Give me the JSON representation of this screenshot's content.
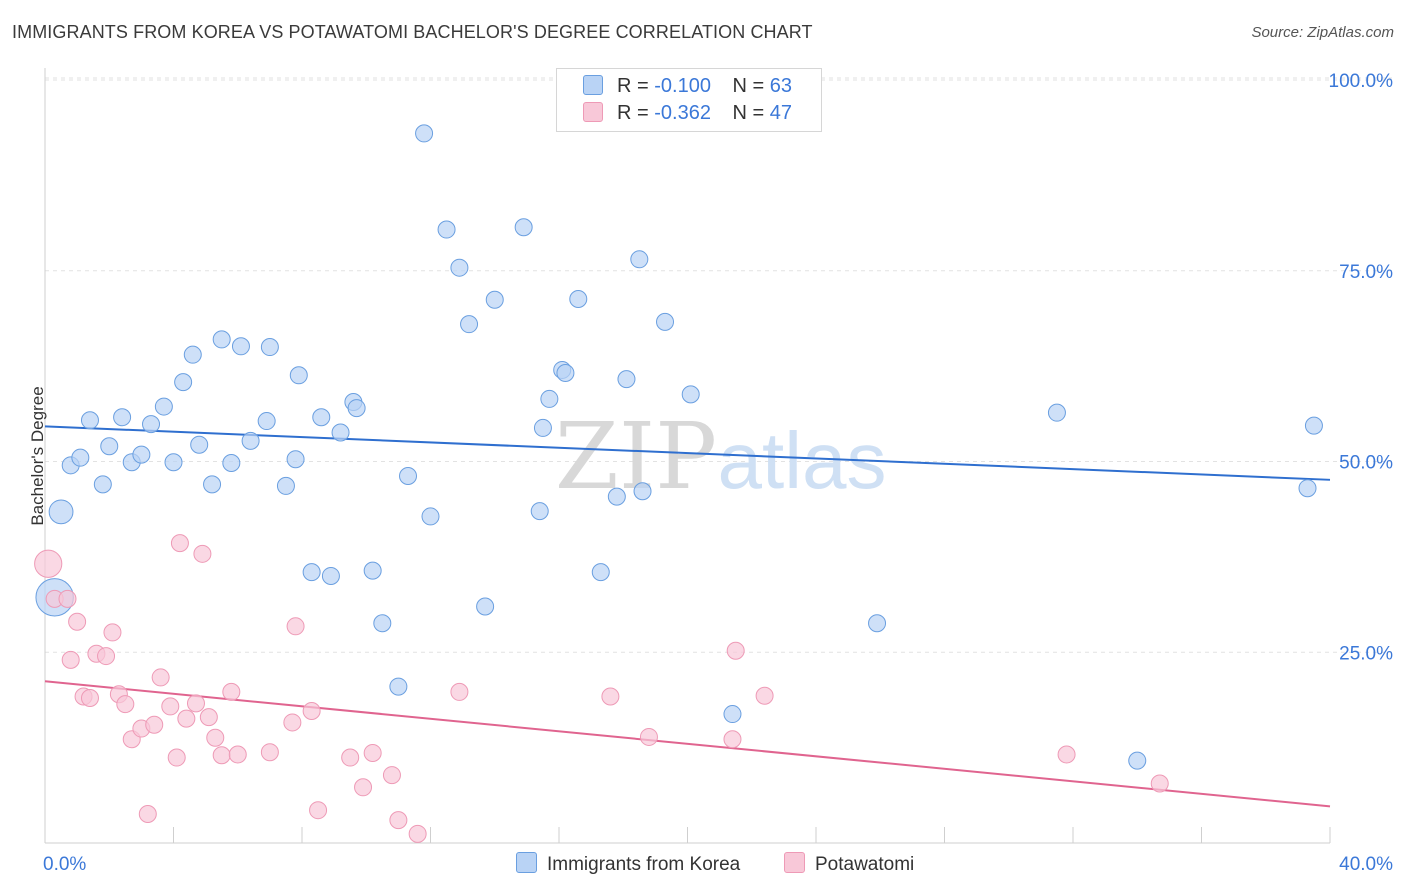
{
  "header": {
    "title": "IMMIGRANTS FROM KOREA VS POTAWATOMI BACHELOR'S DEGREE CORRELATION CHART",
    "source": "Source: ZipAtlas.com"
  },
  "watermark": {
    "zip": "ZIP",
    "atlas": "atlas"
  },
  "legend": {
    "series": [
      {
        "r_label": "R =",
        "r_value": "-0.100",
        "n_label": "N =",
        "n_value": "63",
        "color": "#a8c8f0"
      },
      {
        "r_label": "R =",
        "r_value": "-0.362",
        "n_label": "N =",
        "n_value": "47",
        "color": "#f5b8cc"
      }
    ]
  },
  "chart_data": {
    "type": "scatter",
    "title": "IMMIGRANTS FROM KOREA VS POTAWATOMI BACHELOR'S DEGREE CORRELATION CHART",
    "ylabel": "Bachelor's Degree",
    "xlabel": "",
    "xlim": [
      0,
      40
    ],
    "ylim": [
      0,
      105
    ],
    "x_tick_labels": [
      "0.0%",
      "40.0%"
    ],
    "y_ticks": [
      25,
      50,
      75,
      100
    ],
    "y_tick_labels": [
      "25.0%",
      "50.0%",
      "75.0%",
      "100.0%"
    ],
    "grid": true,
    "legend_position": "top-center",
    "series": [
      {
        "name": "Immigrants from Korea",
        "color": "#6a9fe0",
        "fill": "#b9d3f5",
        "trend": {
          "color": "#2f6fcf",
          "y_at_x0": 54.6,
          "y_at_x40": 47.6
        },
        "points": [
          [
            0.3,
            32.2,
            2.2
          ],
          [
            0.5,
            43.4,
            1.4
          ],
          [
            0.8,
            49.5,
            1
          ],
          [
            1.1,
            50.5,
            1
          ],
          [
            1.4,
            55.4,
            1
          ],
          [
            1.8,
            47.0,
            1
          ],
          [
            2.0,
            52.0,
            1
          ],
          [
            2.4,
            55.8,
            1
          ],
          [
            2.7,
            49.9,
            1
          ],
          [
            3.0,
            50.9,
            1
          ],
          [
            3.3,
            54.9,
            1
          ],
          [
            3.7,
            57.2,
            1
          ],
          [
            4.0,
            49.9,
            1
          ],
          [
            4.3,
            60.4,
            1
          ],
          [
            4.6,
            64.0,
            1
          ],
          [
            4.8,
            52.2,
            1
          ],
          [
            5.2,
            47.0,
            1
          ],
          [
            5.5,
            66.0,
            1
          ],
          [
            5.8,
            49.8,
            1
          ],
          [
            6.1,
            65.1,
            1
          ],
          [
            6.4,
            52.7,
            1
          ],
          [
            6.9,
            55.3,
            1
          ],
          [
            7.0,
            65.0,
            1
          ],
          [
            7.5,
            46.8,
            1
          ],
          [
            7.8,
            50.3,
            1
          ],
          [
            7.9,
            61.3,
            1
          ],
          [
            8.3,
            35.5,
            1
          ],
          [
            8.6,
            55.8,
            1
          ],
          [
            8.9,
            35.0,
            1
          ],
          [
            9.2,
            53.8,
            1
          ],
          [
            9.6,
            57.8,
            1
          ],
          [
            9.7,
            57.0,
            1
          ],
          [
            10.2,
            35.7,
            1
          ],
          [
            10.5,
            28.8,
            1
          ],
          [
            11.0,
            20.5,
            1
          ],
          [
            11.3,
            48.1,
            1
          ],
          [
            11.8,
            93.0,
            1
          ],
          [
            12.0,
            42.8,
            1
          ],
          [
            12.5,
            80.4,
            1
          ],
          [
            12.9,
            75.4,
            1
          ],
          [
            13.2,
            68.0,
            1
          ],
          [
            13.7,
            31.0,
            1
          ],
          [
            14.0,
            71.2,
            1
          ],
          [
            14.9,
            80.7,
            1
          ],
          [
            15.4,
            43.5,
            1
          ],
          [
            15.5,
            54.4,
            1
          ],
          [
            15.7,
            58.2,
            1
          ],
          [
            16.1,
            62.0,
            1
          ],
          [
            16.2,
            61.6,
            1
          ],
          [
            16.6,
            71.3,
            1
          ],
          [
            17.3,
            35.5,
            1
          ],
          [
            17.8,
            45.4,
            1
          ],
          [
            18.1,
            60.8,
            1
          ],
          [
            18.5,
            76.5,
            1
          ],
          [
            18.6,
            46.1,
            1
          ],
          [
            19.3,
            68.3,
            1
          ],
          [
            20.1,
            58.8,
            1
          ],
          [
            21.4,
            16.9,
            1
          ],
          [
            25.9,
            28.8,
            1
          ],
          [
            31.5,
            56.4,
            1
          ],
          [
            34.0,
            10.8,
            1
          ],
          [
            39.3,
            46.5,
            1
          ],
          [
            39.5,
            54.7,
            1
          ]
        ]
      },
      {
        "name": "Potawatomi",
        "color": "#ee9ab6",
        "fill": "#f8c8d8",
        "trend": {
          "color": "#e0648f",
          "y_at_x0": 21.2,
          "y_at_x40": 4.8
        },
        "points": [
          [
            0.1,
            36.6,
            1.6
          ],
          [
            0.3,
            32.0,
            1
          ],
          [
            0.7,
            32.0,
            1
          ],
          [
            0.8,
            24.0,
            1
          ],
          [
            1.0,
            29.0,
            1
          ],
          [
            1.2,
            19.2,
            1
          ],
          [
            1.4,
            19.0,
            1
          ],
          [
            1.6,
            24.8,
            1
          ],
          [
            1.9,
            24.5,
            1
          ],
          [
            2.1,
            27.6,
            1
          ],
          [
            2.3,
            19.5,
            1
          ],
          [
            2.5,
            18.2,
            1
          ],
          [
            2.7,
            13.6,
            1
          ],
          [
            3.0,
            15.0,
            1
          ],
          [
            3.2,
            3.8,
            1
          ],
          [
            3.4,
            15.5,
            1
          ],
          [
            3.6,
            21.7,
            1
          ],
          [
            3.9,
            17.9,
            1
          ],
          [
            4.1,
            11.2,
            1
          ],
          [
            4.2,
            39.3,
            1
          ],
          [
            4.4,
            16.3,
            1
          ],
          [
            4.7,
            18.3,
            1
          ],
          [
            4.9,
            37.9,
            1
          ],
          [
            5.1,
            16.5,
            1
          ],
          [
            5.3,
            13.8,
            1
          ],
          [
            5.5,
            11.5,
            1
          ],
          [
            5.8,
            19.8,
            1
          ],
          [
            6.0,
            11.6,
            1
          ],
          [
            7.0,
            11.9,
            1
          ],
          [
            7.7,
            15.8,
            1
          ],
          [
            7.8,
            28.4,
            1
          ],
          [
            8.3,
            17.3,
            1
          ],
          [
            8.5,
            4.3,
            1
          ],
          [
            9.5,
            11.2,
            1
          ],
          [
            9.9,
            7.3,
            1
          ],
          [
            10.2,
            11.8,
            1
          ],
          [
            10.8,
            8.9,
            1
          ],
          [
            11.0,
            3.0,
            1
          ],
          [
            11.6,
            1.2,
            1
          ],
          [
            12.9,
            19.8,
            1
          ],
          [
            17.6,
            19.2,
            1
          ],
          [
            18.8,
            13.9,
            1
          ],
          [
            21.4,
            13.6,
            1
          ],
          [
            21.5,
            25.2,
            1
          ],
          [
            22.4,
            19.3,
            1
          ],
          [
            31.8,
            11.6,
            1
          ],
          [
            34.7,
            7.8,
            1
          ]
        ]
      }
    ]
  }
}
